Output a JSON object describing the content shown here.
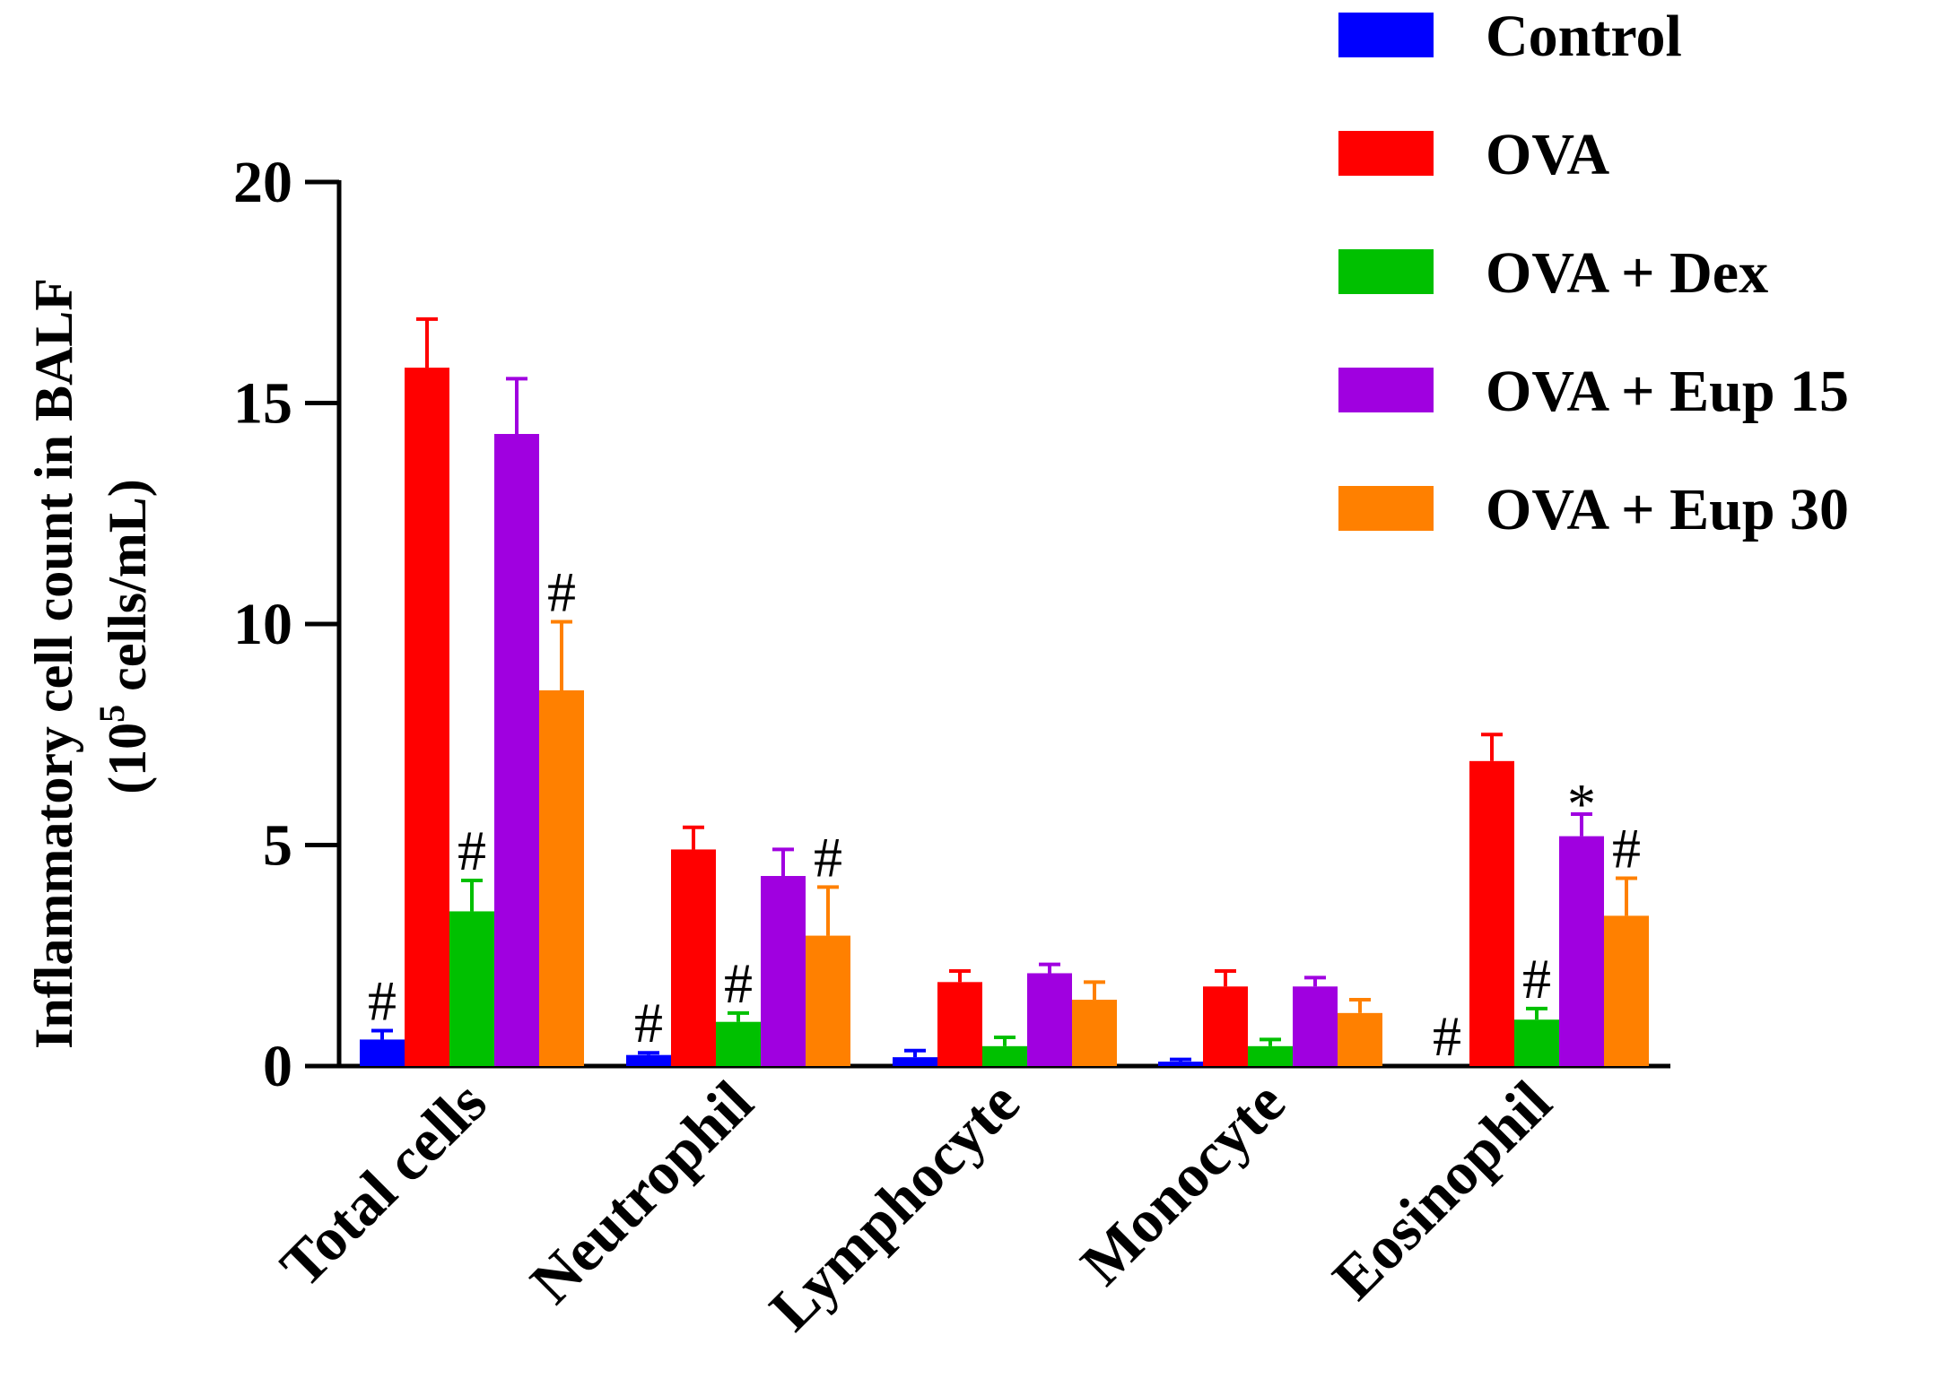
{
  "chart_data": {
    "type": "bar",
    "title": "",
    "ylabel_line1": "Inflammatory cell count in BALF",
    "ylabel_line2_prefix": "(10",
    "ylabel_line2_sup": "5",
    "ylabel_line2_suffix": " cells/mL)",
    "xlabel": "",
    "ylim": [
      0,
      20
    ],
    "yticks": [
      0,
      5,
      10,
      15,
      20
    ],
    "categories": [
      "Total cells",
      "Neutrophil",
      "Lymphocyte",
      "Monocyte",
      "Eosinophil"
    ],
    "series": [
      {
        "name": "Control",
        "color": "#0000ff",
        "values": [
          0.6,
          0.25,
          0.2,
          0.1,
          0.0
        ],
        "errors": [
          0.2,
          0.05,
          0.15,
          0.05,
          0.0
        ],
        "annotations": [
          "#",
          "#",
          "",
          "",
          "#"
        ]
      },
      {
        "name": "OVA",
        "color": "#ff0000",
        "values": [
          15.8,
          4.9,
          1.9,
          1.8,
          6.9
        ],
        "errors": [
          1.1,
          0.5,
          0.25,
          0.35,
          0.6
        ],
        "annotations": [
          "",
          "",
          "",
          "",
          ""
        ]
      },
      {
        "name": "OVA + Dex",
        "color": "#00c000",
        "values": [
          3.5,
          1.0,
          0.45,
          0.45,
          1.05
        ],
        "errors": [
          0.7,
          0.2,
          0.2,
          0.15,
          0.25
        ],
        "annotations": [
          "#",
          "#",
          "",
          "",
          "#"
        ]
      },
      {
        "name": "OVA + Eup 15",
        "color": "#a000e0",
        "values": [
          14.3,
          4.3,
          2.1,
          1.8,
          5.2
        ],
        "errors": [
          1.25,
          0.6,
          0.2,
          0.2,
          0.5
        ],
        "annotations": [
          "",
          "",
          "",
          "",
          "*"
        ]
      },
      {
        "name": "OVA + Eup 30",
        "color": "#ff8000",
        "values": [
          8.5,
          2.95,
          1.5,
          1.2,
          3.4
        ],
        "errors": [
          1.55,
          1.1,
          0.4,
          0.3,
          0.85
        ],
        "annotations": [
          "#",
          "#",
          "",
          "",
          "#"
        ]
      }
    ],
    "legend_position": "top-right"
  }
}
